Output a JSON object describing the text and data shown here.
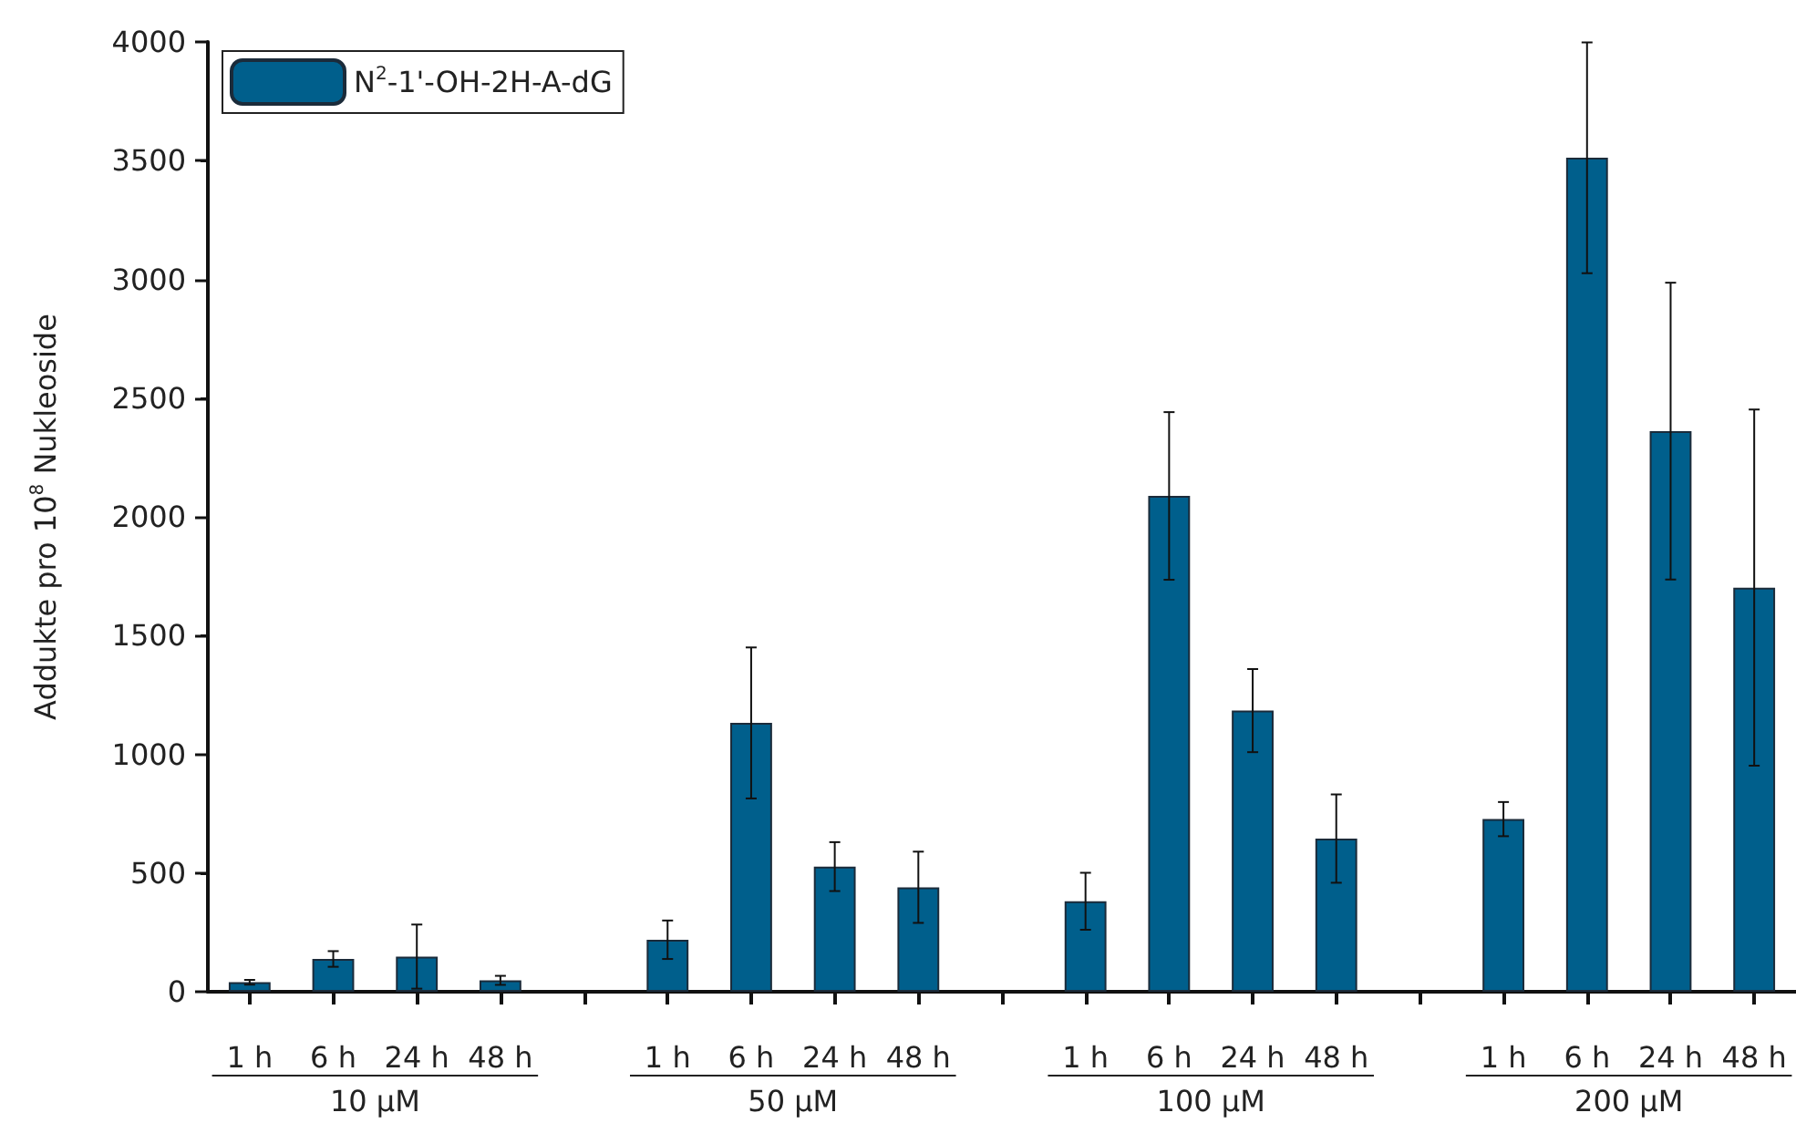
{
  "chart_data": {
    "type": "bar",
    "ylabel": "Addukte pro 10$^{8}$ Nukleoside",
    "categories": [
      "1 h",
      "6 h",
      "24 h",
      "48 h",
      null,
      "1 h",
      "6 h",
      "24 h",
      "48 h",
      null,
      "1 h",
      "6 h",
      "24 h",
      "48 h",
      null,
      "1 h",
      "6 h",
      "24 h",
      "48 h"
    ],
    "series": [
      {
        "name": "N$^{2}$-1'-OH-2H-A-dG",
        "color": "#005f8c",
        "values": [
          40,
          138,
          148,
          48,
          null,
          219,
          1132,
          527,
          440,
          null,
          381,
          2088,
          1184,
          645,
          null,
          727,
          3512,
          2361,
          1702
        ],
        "errors": [
          10,
          33,
          135,
          19,
          null,
          81,
          318,
          103,
          150,
          null,
          120,
          353,
          175,
          186,
          null,
          72,
          486,
          625,
          750
        ]
      }
    ],
    "ylim": [
      0,
      4000
    ],
    "yticks": [
      0,
      500,
      1000,
      1500,
      2000,
      2500,
      3000,
      3500,
      4000
    ],
    "annotations": [
      "10 µM",
      "50 µM",
      "100 µM",
      "200 µM"
    ],
    "legend": "top left",
    "grid": false
  }
}
